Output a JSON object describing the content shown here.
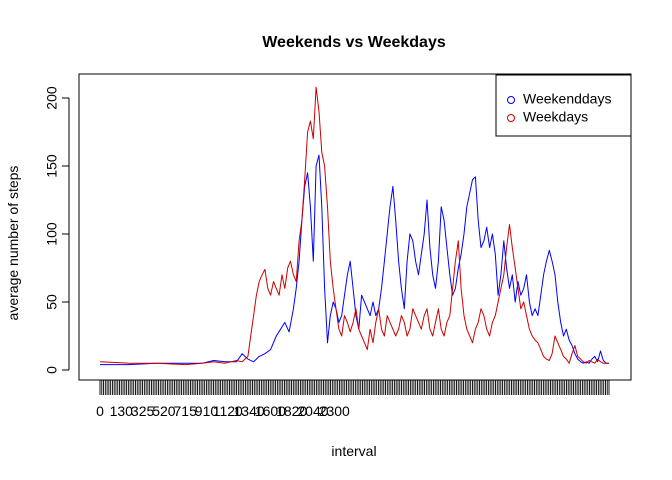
{
  "chart_data": {
    "type": "line",
    "title": "Weekends vs Weekdays",
    "xlabel": "interval",
    "ylabel": "average number of  steps",
    "x_tick_labels": [
      "0",
      "130",
      "325",
      "520",
      "715",
      "910",
      "1120",
      "1340",
      "1600",
      "1820",
      "2040",
      "2300"
    ],
    "y_ticks": [
      0,
      50,
      100,
      150,
      200
    ],
    "ylim": [
      -10,
      215
    ],
    "x_index_range": [
      0,
      287
    ],
    "legend_position": "top-right",
    "series": [
      {
        "name": "Weekenddays",
        "color": "#0000ff",
        "points": [
          [
            0,
            4
          ],
          [
            20,
            4
          ],
          [
            40,
            5
          ],
          [
            60,
            5
          ],
          [
            72,
            5
          ],
          [
            80,
            7
          ],
          [
            88,
            6
          ],
          [
            96,
            6
          ],
          [
            100,
            12
          ],
          [
            104,
            8
          ],
          [
            108,
            6
          ],
          [
            112,
            10
          ],
          [
            116,
            12
          ],
          [
            120,
            15
          ],
          [
            124,
            25
          ],
          [
            127,
            30
          ],
          [
            130,
            35
          ],
          [
            133,
            28
          ],
          [
            136,
            45
          ],
          [
            138,
            60
          ],
          [
            140,
            80
          ],
          [
            142,
            110
          ],
          [
            144,
            135
          ],
          [
            146,
            145
          ],
          [
            148,
            120
          ],
          [
            150,
            80
          ],
          [
            152,
            150
          ],
          [
            154,
            158
          ],
          [
            156,
            120
          ],
          [
            158,
            60
          ],
          [
            160,
            20
          ],
          [
            162,
            40
          ],
          [
            164,
            50
          ],
          [
            166,
            45
          ],
          [
            168,
            35
          ],
          [
            170,
            40
          ],
          [
            172,
            55
          ],
          [
            174,
            70
          ],
          [
            176,
            80
          ],
          [
            178,
            60
          ],
          [
            180,
            40
          ],
          [
            182,
            30
          ],
          [
            184,
            55
          ],
          [
            186,
            50
          ],
          [
            188,
            45
          ],
          [
            190,
            40
          ],
          [
            192,
            50
          ],
          [
            194,
            40
          ],
          [
            196,
            45
          ],
          [
            198,
            60
          ],
          [
            200,
            80
          ],
          [
            202,
            100
          ],
          [
            204,
            120
          ],
          [
            206,
            135
          ],
          [
            208,
            110
          ],
          [
            210,
            80
          ],
          [
            212,
            60
          ],
          [
            214,
            45
          ],
          [
            216,
            80
          ],
          [
            218,
            100
          ],
          [
            220,
            95
          ],
          [
            222,
            80
          ],
          [
            224,
            70
          ],
          [
            226,
            85
          ],
          [
            228,
            100
          ],
          [
            230,
            125
          ],
          [
            232,
            90
          ],
          [
            234,
            70
          ],
          [
            236,
            60
          ],
          [
            238,
            80
          ],
          [
            240,
            120
          ],
          [
            242,
            110
          ],
          [
            244,
            90
          ],
          [
            246,
            70
          ],
          [
            248,
            55
          ],
          [
            250,
            60
          ],
          [
            252,
            75
          ],
          [
            254,
            85
          ],
          [
            256,
            100
          ],
          [
            258,
            120
          ],
          [
            260,
            130
          ],
          [
            262,
            140
          ],
          [
            264,
            142
          ],
          [
            266,
            110
          ],
          [
            268,
            90
          ],
          [
            270,
            95
          ],
          [
            272,
            105
          ],
          [
            274,
            90
          ],
          [
            276,
            100
          ],
          [
            278,
            85
          ],
          [
            280,
            55
          ],
          [
            282,
            70
          ],
          [
            284,
            95
          ],
          [
            286,
            75
          ],
          [
            288,
            60
          ],
          [
            290,
            70
          ],
          [
            292,
            50
          ],
          [
            294,
            65
          ],
          [
            296,
            55
          ],
          [
            298,
            60
          ],
          [
            300,
            70
          ],
          [
            302,
            50
          ],
          [
            304,
            40
          ],
          [
            306,
            45
          ],
          [
            308,
            40
          ],
          [
            310,
            55
          ],
          [
            312,
            70
          ],
          [
            314,
            80
          ],
          [
            316,
            88
          ],
          [
            318,
            80
          ],
          [
            320,
            70
          ],
          [
            322,
            50
          ],
          [
            324,
            35
          ],
          [
            326,
            25
          ],
          [
            328,
            30
          ],
          [
            330,
            22
          ],
          [
            332,
            18
          ],
          [
            334,
            12
          ],
          [
            336,
            8
          ],
          [
            338,
            6
          ],
          [
            340,
            5
          ],
          [
            342,
            6
          ],
          [
            344,
            5
          ],
          [
            346,
            8
          ],
          [
            348,
            10
          ],
          [
            350,
            6
          ],
          [
            352,
            14
          ],
          [
            354,
            7
          ],
          [
            356,
            5
          ],
          [
            358,
            5
          ]
        ]
      },
      {
        "name": "Weekdays",
        "color": "#cc0000",
        "points": [
          [
            0,
            6
          ],
          [
            20,
            5
          ],
          [
            40,
            5
          ],
          [
            60,
            4
          ],
          [
            72,
            5
          ],
          [
            80,
            6
          ],
          [
            88,
            5
          ],
          [
            96,
            7
          ],
          [
            100,
            6
          ],
          [
            104,
            10
          ],
          [
            106,
            25
          ],
          [
            108,
            40
          ],
          [
            110,
            55
          ],
          [
            112,
            65
          ],
          [
            114,
            70
          ],
          [
            116,
            74
          ],
          [
            118,
            60
          ],
          [
            120,
            55
          ],
          [
            122,
            65
          ],
          [
            124,
            60
          ],
          [
            126,
            55
          ],
          [
            128,
            70
          ],
          [
            130,
            60
          ],
          [
            132,
            75
          ],
          [
            134,
            80
          ],
          [
            136,
            70
          ],
          [
            138,
            65
          ],
          [
            140,
            95
          ],
          [
            142,
            110
          ],
          [
            144,
            140
          ],
          [
            146,
            175
          ],
          [
            148,
            183
          ],
          [
            150,
            170
          ],
          [
            152,
            208
          ],
          [
            154,
            190
          ],
          [
            156,
            160
          ],
          [
            158,
            150
          ],
          [
            160,
            120
          ],
          [
            162,
            80
          ],
          [
            164,
            60
          ],
          [
            166,
            45
          ],
          [
            168,
            30
          ],
          [
            170,
            25
          ],
          [
            172,
            40
          ],
          [
            174,
            35
          ],
          [
            176,
            28
          ],
          [
            178,
            35
          ],
          [
            180,
            45
          ],
          [
            182,
            30
          ],
          [
            184,
            25
          ],
          [
            186,
            20
          ],
          [
            188,
            15
          ],
          [
            190,
            30
          ],
          [
            192,
            20
          ],
          [
            194,
            35
          ],
          [
            196,
            45
          ],
          [
            198,
            30
          ],
          [
            200,
            25
          ],
          [
            202,
            40
          ],
          [
            204,
            35
          ],
          [
            206,
            30
          ],
          [
            208,
            25
          ],
          [
            210,
            30
          ],
          [
            212,
            40
          ],
          [
            214,
            35
          ],
          [
            216,
            25
          ],
          [
            218,
            30
          ],
          [
            220,
            45
          ],
          [
            222,
            40
          ],
          [
            224,
            35
          ],
          [
            226,
            30
          ],
          [
            228,
            40
          ],
          [
            230,
            45
          ],
          [
            232,
            30
          ],
          [
            234,
            25
          ],
          [
            236,
            35
          ],
          [
            238,
            45
          ],
          [
            240,
            30
          ],
          [
            242,
            25
          ],
          [
            244,
            35
          ],
          [
            246,
            40
          ],
          [
            248,
            60
          ],
          [
            250,
            80
          ],
          [
            252,
            95
          ],
          [
            254,
            60
          ],
          [
            256,
            40
          ],
          [
            258,
            30
          ],
          [
            260,
            25
          ],
          [
            262,
            20
          ],
          [
            264,
            30
          ],
          [
            266,
            35
          ],
          [
            268,
            45
          ],
          [
            270,
            40
          ],
          [
            272,
            30
          ],
          [
            274,
            25
          ],
          [
            276,
            35
          ],
          [
            278,
            40
          ],
          [
            280,
            50
          ],
          [
            282,
            60
          ],
          [
            284,
            70
          ],
          [
            286,
            90
          ],
          [
            288,
            107
          ],
          [
            290,
            90
          ],
          [
            292,
            75
          ],
          [
            294,
            60
          ],
          [
            296,
            45
          ],
          [
            298,
            50
          ],
          [
            300,
            40
          ],
          [
            302,
            30
          ],
          [
            304,
            25
          ],
          [
            306,
            22
          ],
          [
            308,
            20
          ],
          [
            310,
            15
          ],
          [
            312,
            10
          ],
          [
            314,
            8
          ],
          [
            316,
            7
          ],
          [
            318,
            12
          ],
          [
            320,
            25
          ],
          [
            322,
            20
          ],
          [
            324,
            15
          ],
          [
            326,
            10
          ],
          [
            328,
            8
          ],
          [
            330,
            5
          ],
          [
            332,
            12
          ],
          [
            334,
            18
          ],
          [
            336,
            10
          ],
          [
            338,
            8
          ],
          [
            340,
            6
          ],
          [
            342,
            5
          ],
          [
            344,
            7
          ],
          [
            346,
            6
          ],
          [
            348,
            5
          ],
          [
            350,
            8
          ],
          [
            352,
            6
          ],
          [
            354,
            5
          ],
          [
            356,
            5
          ],
          [
            358,
            5
          ]
        ]
      }
    ]
  }
}
